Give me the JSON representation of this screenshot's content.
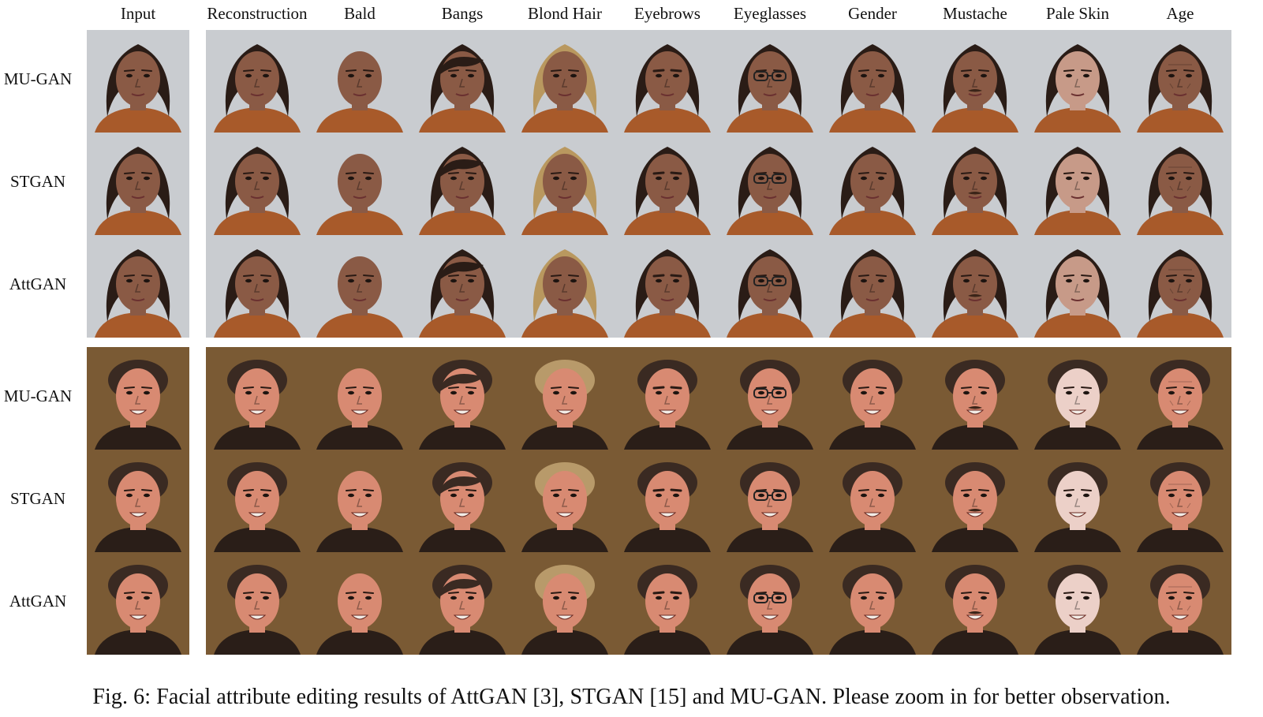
{
  "columns": [
    "Input",
    "Reconstruction",
    "Bald",
    "Bangs",
    "Blond Hair",
    "Eyebrows",
    "Eyeglasses",
    "Gender",
    "Mustache",
    "Pale Skin",
    "Age"
  ],
  "groups": [
    {
      "subject": "woman-with-braids",
      "rows": [
        "MU-GAN",
        "STGAN",
        "AttGAN"
      ],
      "colors": {
        "bg": "#c9ccd0",
        "skin": "#8a5a45",
        "hair": "#2a1c16",
        "shirt": "#a85a2a",
        "pale": "#c79a88",
        "blond": "#b9985f"
      }
    },
    {
      "subject": "smiling-man",
      "rows": [
        "MU-GAN",
        "STGAN",
        "AttGAN"
      ],
      "colors": {
        "bg": "#7a5a34",
        "skin": "#d88a72",
        "hair": "#3a2a22",
        "shirt": "#2a1e18",
        "pale": "#ecd0c8",
        "blond": "#b89a6a"
      }
    }
  ],
  "caption": "Fig. 6: Facial attribute editing results of AttGAN [3], STGAN [15] and MU-GAN. Please zoom in for better observation."
}
